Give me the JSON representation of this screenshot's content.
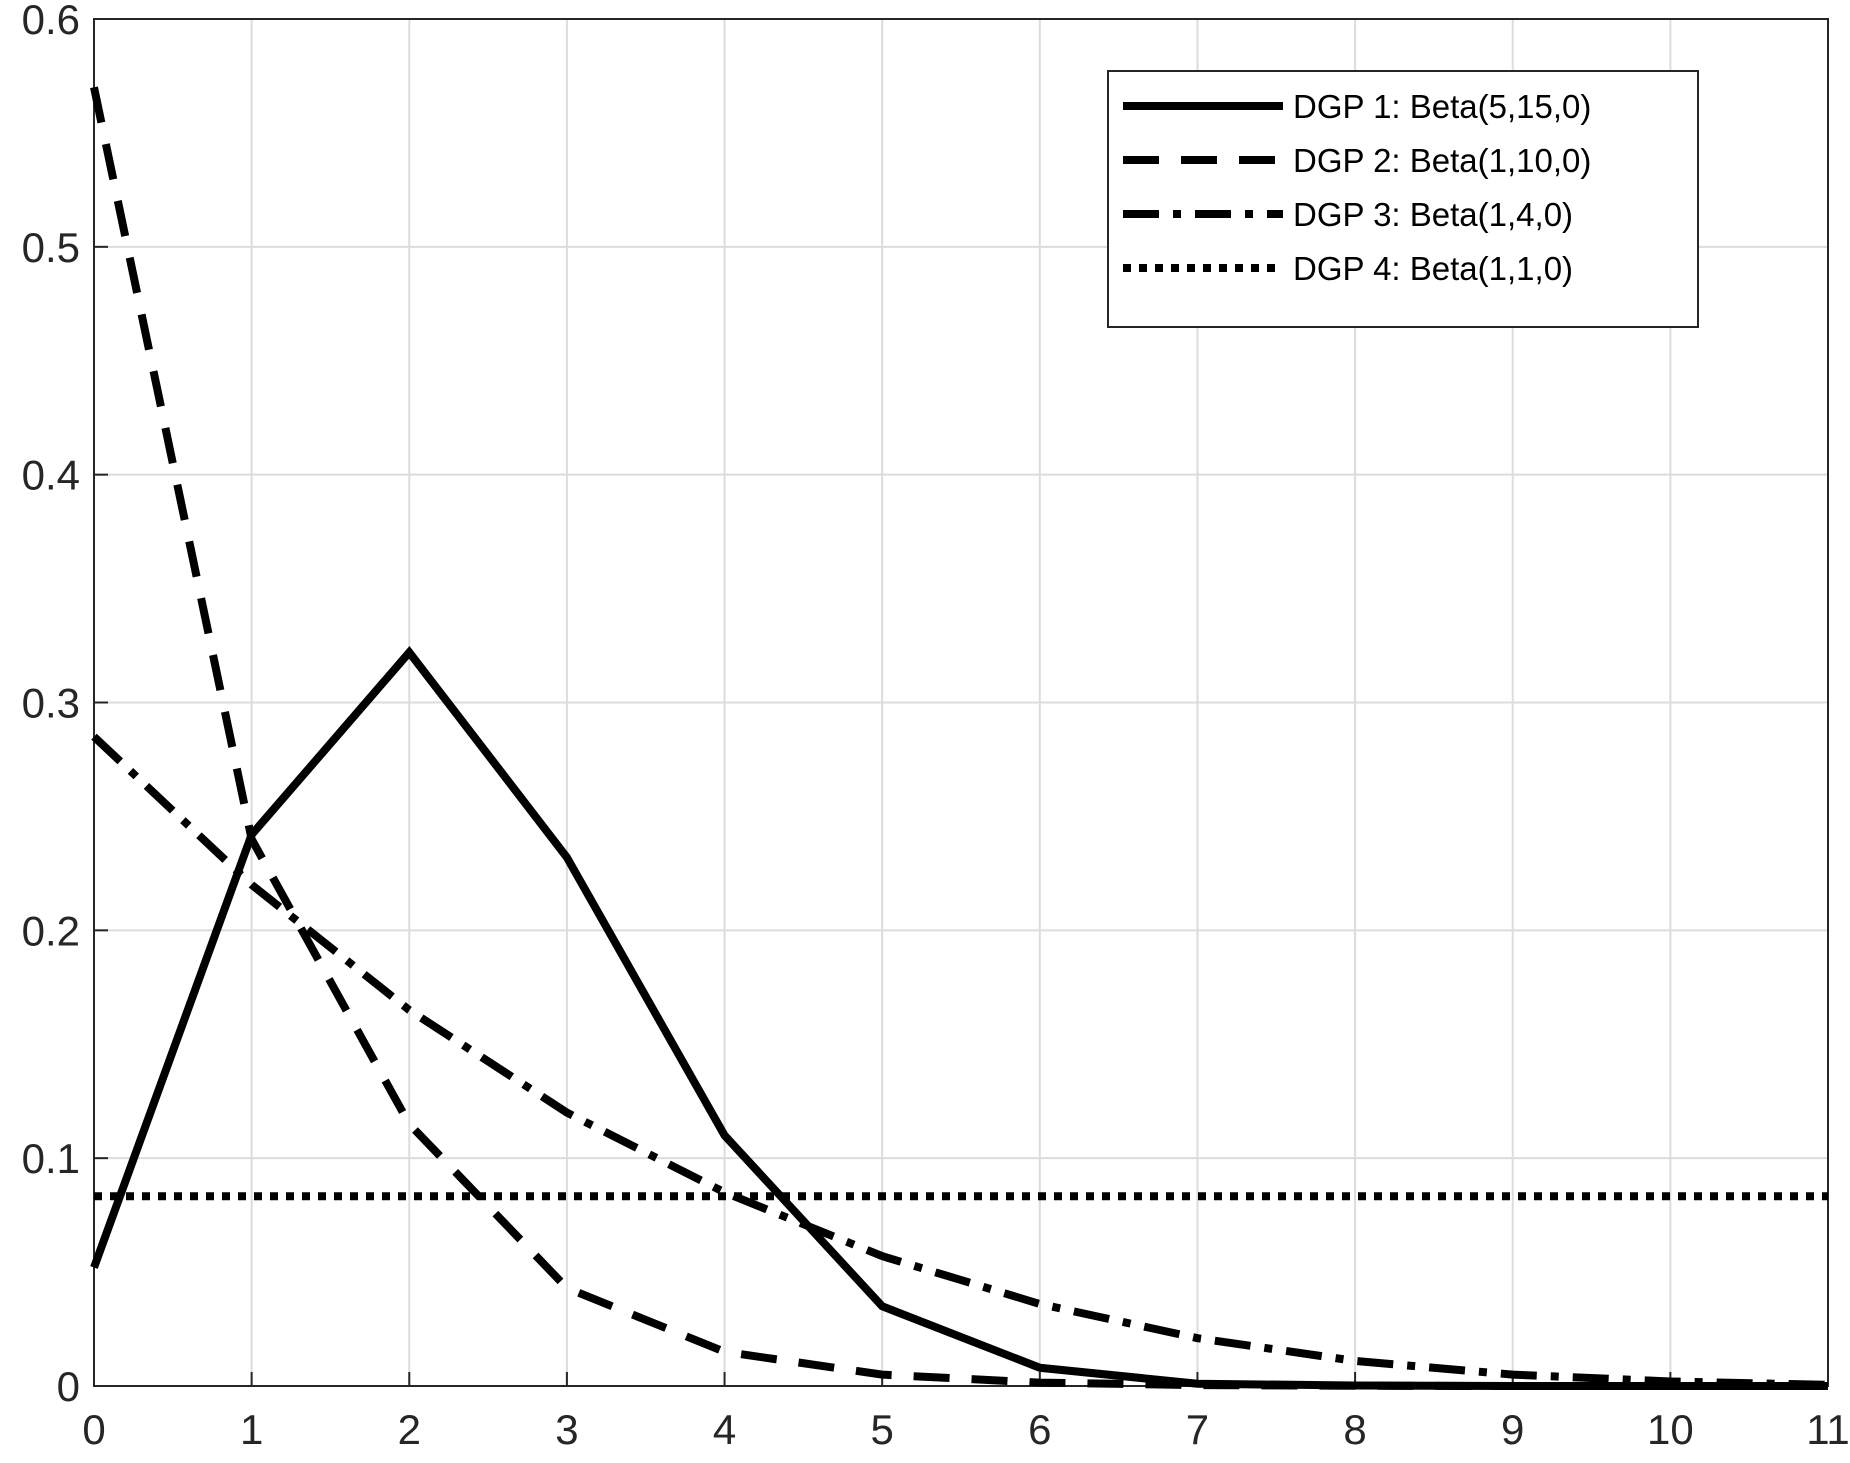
{
  "chart_data": {
    "type": "line",
    "x": [
      0,
      1,
      2,
      3,
      4,
      5,
      6,
      7,
      8,
      9,
      10,
      11
    ],
    "series": [
      {
        "name": "DGP 1: Beta(5,15,0)",
        "color": "#000000",
        "dash": "solid",
        "values": [
          0.052,
          0.242,
          0.322,
          0.232,
          0.11,
          0.035,
          0.008,
          0.001,
          0.0002,
          0,
          0,
          0
        ]
      },
      {
        "name": "DGP 2: Beta(1,10,0)",
        "color": "#000000",
        "dash": "dashed",
        "values": [
          0.57,
          0.24,
          0.115,
          0.043,
          0.015,
          0.005,
          0.0015,
          0.0004,
          0.0001,
          0,
          0,
          0
        ]
      },
      {
        "name": "DGP 3: Beta(1,4,0)",
        "color": "#000000",
        "dash": "dashdot",
        "values": [
          0.285,
          0.22,
          0.165,
          0.12,
          0.085,
          0.057,
          0.036,
          0.021,
          0.011,
          0.005,
          0.002,
          0.0005
        ]
      },
      {
        "name": "DGP 4: Beta(1,1,0)",
        "color": "#000000",
        "dash": "dotted",
        "values": [
          0.0833,
          0.0833,
          0.0833,
          0.0833,
          0.0833,
          0.0833,
          0.0833,
          0.0833,
          0.0833,
          0.0833,
          0.0833,
          0.0833
        ]
      }
    ],
    "xlim": [
      0,
      11
    ],
    "xticks": [
      0,
      1,
      2,
      3,
      4,
      5,
      6,
      7,
      8,
      9,
      10,
      11
    ],
    "ylim": [
      0,
      0.6
    ],
    "yticks": [
      0,
      0.1,
      0.2,
      0.3,
      0.4,
      0.5,
      0.6
    ],
    "grid": true,
    "legend": "top-right"
  }
}
